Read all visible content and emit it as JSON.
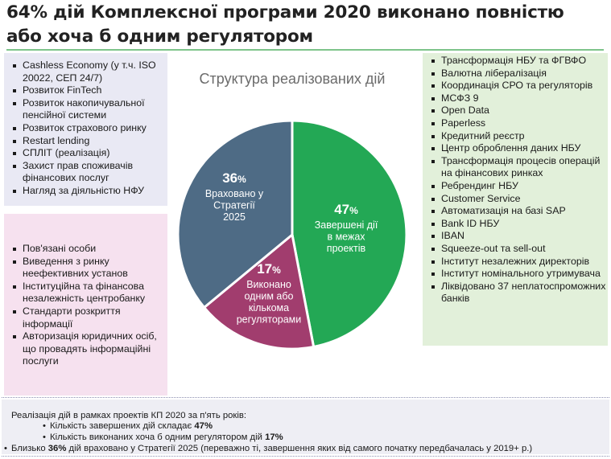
{
  "title": {
    "line1": "64% дій Комплексної програми 2020 виконано повністю",
    "line2": "або хоча б одним регулятором"
  },
  "colors": {
    "title_rule": "#7dc48a",
    "lavender_box": "#e9e9f4",
    "pink_box": "#f6e1ef",
    "green_box": "#e2f0da",
    "slice_completed": "#23A855",
    "slice_one_regulator": "#A13D6E",
    "slice_strategy": "#4E6B85"
  },
  "left_top_list": [
    "Cashless Economy (у т.ч. ISO 20022, СЕП 24/7)",
    "Розвиток FinTech",
    "Розвиток накопичувальної пенсійної системи",
    "Розвиток страхового ринку",
    "Restart lending",
    "СПЛІТ (реалізація)",
    "Захист прав споживачів фінансових послуг",
    "Нагляд за діяльністю НФУ"
  ],
  "left_bottom_list": [
    "Пов'язані особи",
    "Виведення з ринку неефективних установ",
    "Інституційна та фінансова незалежність центробанку",
    "Стандарти розкриття інформації",
    "Авторизація юридичних осіб, що провадять інформаційні послуги"
  ],
  "right_list": [
    "Трансформація НБУ та ФГВФО",
    "Валютна лібералізація",
    "Координація СРО та регуляторів",
    "МСФЗ 9",
    "Open Data",
    "Paperless",
    "Кредитний реєстр",
    "Центр оброблення даних НБУ",
    "Трансформація процесів операцій на фінансових ринках",
    "Ребрендинг НБУ",
    "Customer Service",
    "Автоматизація на базі SAP",
    "Bank ID НБУ",
    "IBAN",
    "Squeeze-out та sell-out",
    "Інститут незалежних директорів",
    "Інститут номінального утримувача",
    "Ліквідовано 37 неплатоспроможних банків"
  ],
  "chart_data": {
    "type": "pie",
    "title": "Структура реалізованих дій",
    "unit": "%",
    "slices": [
      {
        "label_lines": [
          "Завершені дії",
          "в межах",
          "проектів"
        ],
        "value": 47,
        "color": "#23A855"
      },
      {
        "label_lines": [
          "Виконано",
          "одним або",
          "кількома",
          "регуляторами"
        ],
        "value": 17,
        "color": "#A13D6E"
      },
      {
        "label_lines": [
          "Враховано у",
          "Стратегії",
          "2025"
        ],
        "value": 36,
        "color": "#4E6B85"
      }
    ]
  },
  "footer": {
    "line1": "Реалізація дій в рамках проектів КП 2020 за п'ять років:",
    "line2_prefix": "Кількість завершених дій складає ",
    "line2_value": "47%",
    "line3_prefix": "Кількість виконаних хоча б одним регулятором дій ",
    "line3_value": "17%",
    "line4_prefix": "Близько ",
    "line4_value": "36%",
    "line4_suffix": " дій враховано у Стратегії 2025 (переважно ті, завершення яких від самого початку передбачалась   у  2019+ р.)"
  }
}
